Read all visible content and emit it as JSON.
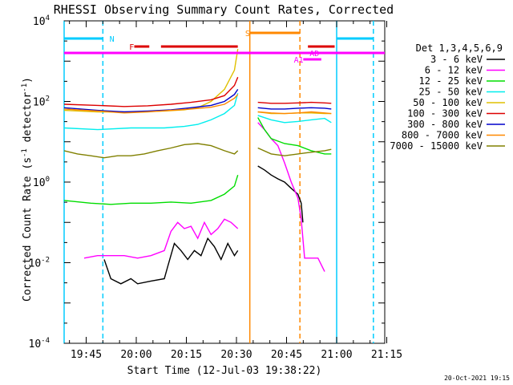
{
  "chart_data": {
    "type": "line",
    "title": "RHESSI Observing Summary Count Rates, Corrected",
    "xlabel": "Start Time (12-Jul-03 19:38:22)",
    "ylabel_main": "Corrected Count Rate (s",
    "ylabel_sup1": "-1",
    "ylabel_mid": " detector",
    "ylabel_sup2": "-1",
    "ylabel_end": ")",
    "footer": "20-Oct-2021 19:15",
    "x_range_minutes": [
      0,
      96
    ],
    "y_scale": "log",
    "y_range": [
      0.0001,
      10000
    ],
    "x_ticks": [
      {
        "m": 6.6,
        "label": "19:45"
      },
      {
        "m": 21.6,
        "label": "20:00"
      },
      {
        "m": 36.6,
        "label": "20:15"
      },
      {
        "m": 51.6,
        "label": "20:30"
      },
      {
        "m": 66.6,
        "label": "20:45"
      },
      {
        "m": 81.6,
        "label": "21:00"
      },
      {
        "m": 96.6,
        "label": "21:15"
      }
    ],
    "y_ticks": [
      {
        "v": 0.0001,
        "base": "10",
        "exp": "-4"
      },
      {
        "v": 0.01,
        "base": "10",
        "exp": "-2"
      },
      {
        "v": 1,
        "base": "10",
        "exp": "0"
      },
      {
        "v": 100,
        "base": "10",
        "exp": "2"
      },
      {
        "v": 10000,
        "base": "10",
        "exp": "4"
      }
    ],
    "legend": {
      "title": "Det 1,3,4,5,6,9",
      "placement": "right",
      "entries": [
        {
          "label": "3 - 6 keV",
          "color": "#000000"
        },
        {
          "label": "6 - 12 keV",
          "color": "#ff00ff"
        },
        {
          "label": "12 - 25 keV",
          "color": "#00dd00"
        },
        {
          "label": "25 - 50 keV",
          "color": "#00eeee"
        },
        {
          "label": "50 - 100 keV",
          "color": "#e0c000"
        },
        {
          "label": "100 - 300 keV",
          "color": "#dd0000"
        },
        {
          "label": "300 - 800 keV",
          "color": "#0000cc"
        },
        {
          "label": "800 - 7000 keV",
          "color": "#ff8800"
        },
        {
          "label": "7000 - 15000 keV",
          "color": "#808000"
        }
      ]
    },
    "series": [
      {
        "name": "3 - 6 keV",
        "color": "#000000",
        "segments": [
          [
            [
              12,
              0.012
            ],
            [
              14,
              0.004
            ],
            [
              17,
              0.003
            ],
            [
              20,
              0.004
            ],
            [
              22,
              0.003
            ],
            [
              26,
              0.0035
            ],
            [
              30,
              0.004
            ],
            [
              31,
              0.008
            ],
            [
              33,
              0.03
            ],
            [
              35,
              0.02
            ],
            [
              37,
              0.012
            ],
            [
              39,
              0.02
            ],
            [
              41,
              0.015
            ],
            [
              43,
              0.04
            ],
            [
              45,
              0.025
            ],
            [
              47,
              0.012
            ],
            [
              49,
              0.03
            ],
            [
              51,
              0.015
            ],
            [
              52,
              0.02
            ]
          ],
          [
            [
              58,
              2.5
            ],
            [
              60,
              2
            ],
            [
              62,
              1.5
            ],
            [
              64,
              1.2
            ],
            [
              66,
              1
            ],
            [
              68,
              0.7
            ],
            [
              70,
              0.5
            ],
            [
              71,
              0.3
            ],
            [
              71.5,
              0.1
            ]
          ]
        ]
      },
      {
        "name": "6 - 12 keV",
        "color": "#ff00ff",
        "segments": [
          [
            [
              6,
              0.013
            ],
            [
              10,
              0.015
            ],
            [
              13,
              0.015
            ],
            [
              18,
              0.015
            ],
            [
              22,
              0.013
            ],
            [
              26,
              0.015
            ],
            [
              30,
              0.02
            ],
            [
              32,
              0.06
            ],
            [
              34,
              0.1
            ],
            [
              36,
              0.07
            ],
            [
              38,
              0.08
            ],
            [
              40,
              0.04
            ],
            [
              42,
              0.1
            ],
            [
              44,
              0.05
            ],
            [
              46,
              0.07
            ],
            [
              48,
              0.12
            ],
            [
              50,
              0.1
            ],
            [
              52,
              0.07
            ]
          ],
          [
            [
              58,
              30
            ],
            [
              60,
              20
            ],
            [
              62,
              12
            ],
            [
              64,
              8
            ],
            [
              66,
              3
            ],
            [
              68,
              1
            ],
            [
              70,
              0.4
            ],
            [
              71,
              0.12
            ],
            [
              72,
              0.013
            ],
            [
              76,
              0.013
            ],
            [
              78,
              0.006
            ]
          ]
        ]
      },
      {
        "name": "12 - 25 keV",
        "color": "#00dd00",
        "segments": [
          [
            [
              0,
              0.35
            ],
            [
              8,
              0.3
            ],
            [
              14,
              0.28
            ],
            [
              20,
              0.3
            ],
            [
              26,
              0.3
            ],
            [
              32,
              0.32
            ],
            [
              38,
              0.3
            ],
            [
              44,
              0.35
            ],
            [
              48,
              0.5
            ],
            [
              51,
              0.8
            ],
            [
              52,
              1.5
            ]
          ],
          [
            [
              58,
              40
            ],
            [
              60,
              20
            ],
            [
              62,
              12
            ],
            [
              66,
              9
            ],
            [
              70,
              8
            ],
            [
              74,
              6
            ],
            [
              78,
              5
            ],
            [
              80,
              5
            ]
          ]
        ]
      },
      {
        "name": "25 - 50 keV",
        "color": "#00eeee",
        "segments": [
          [
            [
              0,
              22
            ],
            [
              10,
              20
            ],
            [
              20,
              22
            ],
            [
              30,
              22
            ],
            [
              36,
              24
            ],
            [
              40,
              27
            ],
            [
              44,
              35
            ],
            [
              48,
              50
            ],
            [
              51,
              80
            ],
            [
              52,
              160
            ]
          ],
          [
            [
              58,
              45
            ],
            [
              62,
              35
            ],
            [
              66,
              30
            ],
            [
              70,
              32
            ],
            [
              74,
              35
            ],
            [
              78,
              38
            ],
            [
              80,
              30
            ]
          ]
        ]
      },
      {
        "name": "50 - 100 keV",
        "color": "#e0c000",
        "segments": [
          [
            [
              0,
              60
            ],
            [
              10,
              55
            ],
            [
              20,
              55
            ],
            [
              30,
              58
            ],
            [
              36,
              62
            ],
            [
              40,
              70
            ],
            [
              44,
              100
            ],
            [
              48,
              200
            ],
            [
              51,
              600
            ],
            [
              52,
              2000
            ]
          ],
          [
            [
              58,
              55
            ],
            [
              62,
              50
            ],
            [
              66,
              50
            ],
            [
              70,
              52
            ],
            [
              74,
              52
            ],
            [
              78,
              50
            ],
            [
              80,
              50
            ]
          ]
        ]
      },
      {
        "name": "100 - 300 keV",
        "color": "#dd0000",
        "segments": [
          [
            [
              0,
              85
            ],
            [
              10,
              80
            ],
            [
              18,
              75
            ],
            [
              25,
              78
            ],
            [
              32,
              85
            ],
            [
              38,
              95
            ],
            [
              44,
              110
            ],
            [
              48,
              140
            ],
            [
              51,
              250
            ],
            [
              52,
              400
            ]
          ],
          [
            [
              58,
              95
            ],
            [
              62,
              90
            ],
            [
              66,
              90
            ],
            [
              70,
              92
            ],
            [
              74,
              95
            ],
            [
              78,
              92
            ],
            [
              80,
              90
            ]
          ]
        ]
      },
      {
        "name": "300 - 800 keV",
        "color": "#0000cc",
        "segments": [
          [
            [
              0,
              70
            ],
            [
              10,
              60
            ],
            [
              18,
              55
            ],
            [
              25,
              58
            ],
            [
              32,
              62
            ],
            [
              38,
              70
            ],
            [
              44,
              80
            ],
            [
              48,
              100
            ],
            [
              51,
              150
            ],
            [
              52,
              200
            ]
          ],
          [
            [
              58,
              70
            ],
            [
              62,
              65
            ],
            [
              66,
              65
            ],
            [
              70,
              68
            ],
            [
              74,
              70
            ],
            [
              78,
              68
            ],
            [
              80,
              65
            ]
          ]
        ]
      },
      {
        "name": "800 - 7000 keV",
        "color": "#ff8800",
        "segments": [
          [
            [
              0,
              65
            ],
            [
              10,
              58
            ],
            [
              18,
              52
            ],
            [
              25,
              55
            ],
            [
              32,
              60
            ],
            [
              38,
              65
            ],
            [
              44,
              72
            ],
            [
              48,
              85
            ],
            [
              51,
              120
            ],
            [
              52,
              150
            ]
          ],
          [
            [
              58,
              55
            ],
            [
              62,
              52
            ],
            [
              66,
              50
            ],
            [
              70,
              52
            ],
            [
              74,
              55
            ],
            [
              78,
              52
            ],
            [
              80,
              50
            ]
          ]
        ]
      },
      {
        "name": "7000 - 15000 keV",
        "color": "#808000",
        "segments": [
          [
            [
              0,
              6
            ],
            [
              4,
              5
            ],
            [
              8,
              4.5
            ],
            [
              12,
              4
            ],
            [
              16,
              4.5
            ],
            [
              20,
              4.5
            ],
            [
              24,
              5
            ],
            [
              28,
              6
            ],
            [
              32,
              7
            ],
            [
              36,
              8.5
            ],
            [
              40,
              9
            ],
            [
              44,
              8
            ],
            [
              48,
              6
            ],
            [
              51,
              5
            ],
            [
              52,
              6
            ]
          ],
          [
            [
              58,
              7
            ],
            [
              62,
              5
            ],
            [
              66,
              4.5
            ],
            [
              70,
              5
            ],
            [
              74,
              5.5
            ],
            [
              78,
              6
            ],
            [
              80,
              6.5
            ]
          ]
        ]
      }
    ],
    "vlines": [
      {
        "m": 0,
        "color": "#00ccff",
        "style": "solid"
      },
      {
        "m": 11.6,
        "color": "#00ccff",
        "style": "dashed"
      },
      {
        "m": 55.6,
        "color": "#ff8800",
        "style": "solid"
      },
      {
        "m": 70.6,
        "color": "#ff8800",
        "style": "dashed"
      },
      {
        "m": 81.6,
        "color": "#00ccff",
        "style": "solid"
      },
      {
        "m": 92.6,
        "color": "#00ccff",
        "style": "dashed"
      }
    ],
    "hbars": [
      {
        "label": "N",
        "color": "#00ccff",
        "y": 48,
        "x0": 0,
        "x1": 11.6,
        "label_m": 13.6
      },
      {
        "label": "",
        "color": "#00ccff",
        "y": 48,
        "x0": 81.6,
        "x1": 92.6,
        "label_m": null
      },
      {
        "label": "F",
        "color": "#dd0000",
        "y": 58,
        "x0": 21,
        "x1": 25.5,
        "label_m": 19.5
      },
      {
        "label": "",
        "color": "#dd0000",
        "y": 58,
        "x0": 29,
        "x1": 52,
        "label_m": null
      },
      {
        "label": "",
        "color": "#dd0000",
        "y": 58,
        "x0": 73,
        "x1": 81,
        "label_m": null
      },
      {
        "label": "S",
        "color": "#ff8800",
        "y": 41,
        "x0": 55.6,
        "x1": 70.6,
        "label_m": 54.2
      },
      {
        "label": "AD",
        "color": "#ff00ff",
        "y": 66,
        "x0": 0,
        "x1": 96,
        "label_m": 73.5
      },
      {
        "label": "A1",
        "color": "#ff00ff",
        "y": 74,
        "x0": 71.6,
        "x1": 76,
        "label_m": 68.8
      },
      {
        "label": "",
        "color": "#ff00ff",
        "y": 74,
        "x0": 72.8,
        "x1": 77,
        "label_m": null
      }
    ]
  }
}
